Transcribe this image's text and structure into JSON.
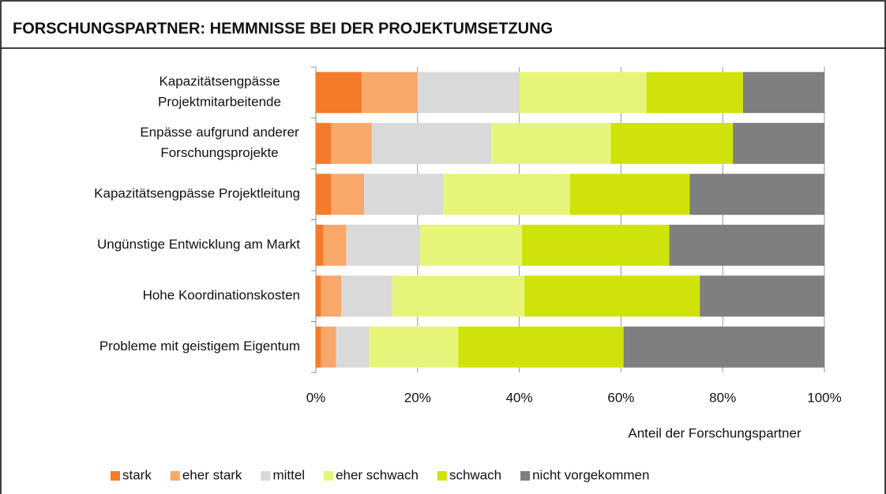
{
  "chart_data": {
    "type": "stacked-bar-horizontal",
    "title": "FORSCHUNGSPARTNER: HEMMNISSE BEI DER PROJEKTUMSETZUNG",
    "categories": [
      "Kapazitätsengpässe\nProjektmitarbeitende",
      "Enpässe aufgrund anderer\nForschungsprojekte",
      "Kapazitätsengpässe Projektleitung",
      "Ungünstige Entwicklung am Markt",
      "Hohe Koordinationskosten",
      "Probleme mit geistigem Eigentum"
    ],
    "series": [
      {
        "name": "stark",
        "color": "#f47b2a",
        "values": [
          9,
          3,
          3,
          1.5,
          1,
          1
        ]
      },
      {
        "name": "eher stark",
        "color": "#f9a86b",
        "values": [
          11,
          8,
          6.5,
          4.5,
          4,
          3
        ]
      },
      {
        "name": "mittel",
        "color": "#d9d9d9",
        "values": [
          20,
          23.5,
          15.5,
          14.5,
          10,
          6.5
        ]
      },
      {
        "name": "eher schwach",
        "color": "#e6f57a",
        "values": [
          25,
          23.5,
          25,
          20,
          26,
          17.5
        ]
      },
      {
        "name": "schwach",
        "color": "#cfe30b",
        "values": [
          19,
          24,
          23.5,
          29,
          34.5,
          32.5
        ]
      },
      {
        "name": "nicht vorgekommen",
        "color": "#7f7f7f",
        "values": [
          16,
          18,
          26.5,
          30.5,
          24.5,
          39.5
        ]
      }
    ],
    "x_label": "Anteil der Forschungspartner",
    "xlim": [
      0,
      100
    ],
    "xticks": [
      {
        "value": 0,
        "label": "0%"
      },
      {
        "value": 20,
        "label": "20%"
      },
      {
        "value": 40,
        "label": "40%"
      },
      {
        "value": 60,
        "label": "60%"
      },
      {
        "value": 80,
        "label": "80%"
      },
      {
        "value": 100,
        "label": "100%"
      }
    ],
    "grid": true,
    "legend": "bottom"
  }
}
